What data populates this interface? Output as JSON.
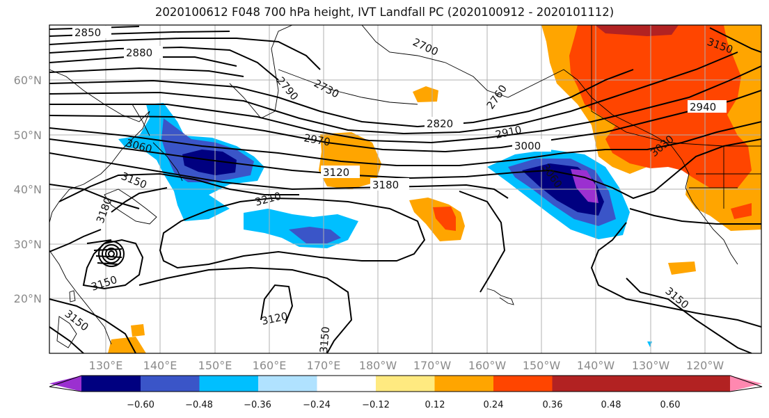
{
  "title": "2020100612 F048 700 hPa height, IVT Landfall PC (2020100912 - 2020101112)",
  "map": {
    "lon_labels": [
      "130°E",
      "140°E",
      "150°E",
      "160°E",
      "170°E",
      "180°W",
      "170°W",
      "160°W",
      "150°W",
      "140°W",
      "130°W",
      "120°W"
    ],
    "lat_labels": [
      "60°N",
      "50°N",
      "40°N",
      "30°N",
      "20°N"
    ],
    "height_contour_labels": [
      "2850",
      "2880",
      "2730",
      "2700",
      "2790",
      "2760",
      "2820",
      "2910",
      "2970",
      "3000",
      "2940",
      "3030",
      "3060",
      "3120",
      "3180",
      "3150",
      "3150",
      "3150",
      "3210",
      "3180",
      "3120",
      "3150",
      "3150",
      "3150",
      "3060"
    ]
  },
  "colorbar": {
    "ticks": [
      "−0.60",
      "−0.48",
      "−0.36",
      "−0.24",
      "−0.12",
      "0.12",
      "0.24",
      "0.36",
      "0.48",
      "0.60"
    ],
    "colors": [
      "#9b30d0",
      "#000080",
      "#3a55c8",
      "#00bfff",
      "#b0e2ff",
      "#ffffff",
      "#ffea80",
      "#ffa500",
      "#ff4500",
      "#b22222",
      "#ff88b0"
    ]
  },
  "colors": {
    "violet": "#9b30d0",
    "navy": "#000080",
    "royal": "#3a55c8",
    "sky": "#00bfff",
    "pale_blue": "#b0e2ff",
    "pale_yellow": "#ffea80",
    "orange": "#ffa500",
    "orange_red": "#ff4500",
    "firebrick": "#b22222",
    "pink": "#ff88b0",
    "contour": "#000000",
    "grid": "#b0b0b0"
  }
}
